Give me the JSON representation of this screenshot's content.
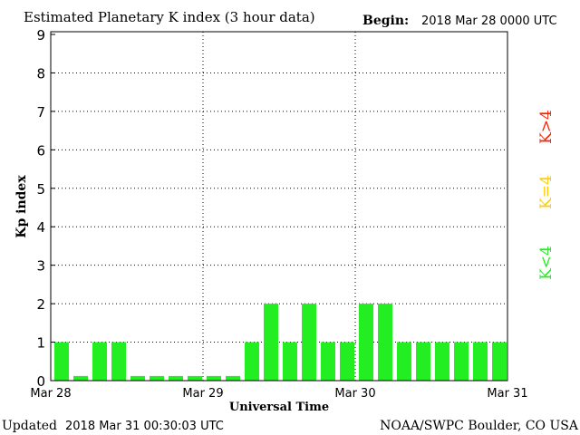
{
  "chart_data": {
    "type": "bar",
    "title": "Estimated Planetary K index (3 hour data)",
    "begin_label": "Begin:",
    "begin_value": "2018 Mar 28 0000 UTC",
    "xlabel": "Universal Time",
    "ylabel": "Kp index",
    "ylim": [
      0,
      9
    ],
    "yticks": [
      "0",
      "1",
      "2",
      "3",
      "4",
      "5",
      "6",
      "7",
      "8",
      "9"
    ],
    "xticks": [
      "Mar 28",
      "Mar 29",
      "Mar 30",
      "Mar 31"
    ],
    "grid": true,
    "values": [
      1,
      0,
      1,
      1,
      0,
      0,
      0,
      0,
      0,
      0,
      1,
      2,
      1,
      2,
      1,
      1,
      2,
      2,
      1,
      1,
      1,
      1,
      1,
      1
    ],
    "legend": [
      {
        "label": "K<4",
        "color": "#22ee22"
      },
      {
        "label": "K=4",
        "color": "#ffcc00"
      },
      {
        "label": "K>4",
        "color": "#ff2200"
      }
    ],
    "bar_color": "#22ee22"
  },
  "footer": {
    "updated_label": "Updated",
    "updated_value": "2018 Mar 31 00:30:03 UTC",
    "credit": "NOAA/SWPC Boulder, CO USA"
  }
}
